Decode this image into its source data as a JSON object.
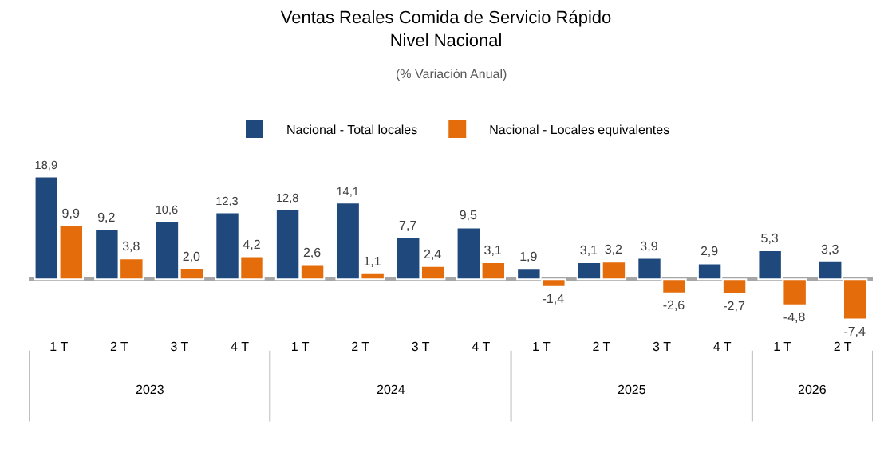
{
  "chart_data": {
    "type": "bar",
    "title": "Ventas Reales Comida de Servicio Rápido\nNivel Nacional",
    "subtitle": "(% Variación Anual)",
    "categories": [
      "1 T",
      "2 T",
      "3 T",
      "4 T",
      "1 T",
      "2 T",
      "3 T",
      "4 T",
      "1 T",
      "2 T",
      "3 T",
      "4 T",
      "1 T",
      "2 T"
    ],
    "series": [
      {
        "name": "Nacional - Total locales",
        "color": "#1f497d",
        "values": [
          18.9,
          9.2,
          10.6,
          12.3,
          12.8,
          14.1,
          7.7,
          9.5,
          1.9,
          3.1,
          3.9,
          2.9,
          5.3,
          3.3
        ],
        "value_labels": [
          "18,9",
          "9,2",
          "10,6",
          "12,3",
          "12,8",
          "14,1",
          "7,7",
          "9,5",
          "1,9",
          "3,1",
          "3,9",
          "2,9",
          "5,3",
          "3,3"
        ]
      },
      {
        "name": "Nacional - Locales equivalentes",
        "color": "#e46c0a",
        "values": [
          9.9,
          3.8,
          2.0,
          4.2,
          2.6,
          1.1,
          2.4,
          3.1,
          -1.4,
          3.2,
          -2.6,
          -2.7,
          -4.8,
          -7.4
        ],
        "value_labels": [
          "9,9",
          "3,8",
          "2,0",
          "4,2",
          "2,6",
          "1,1",
          "2,4",
          "3,1",
          "-1,4",
          "3,2",
          "-2,6",
          "-2,7",
          "-4,8",
          "-7,4"
        ]
      }
    ],
    "annotations": [
      "2023",
      "2024",
      "2025",
      "2026"
    ],
    "legend": "top"
  }
}
